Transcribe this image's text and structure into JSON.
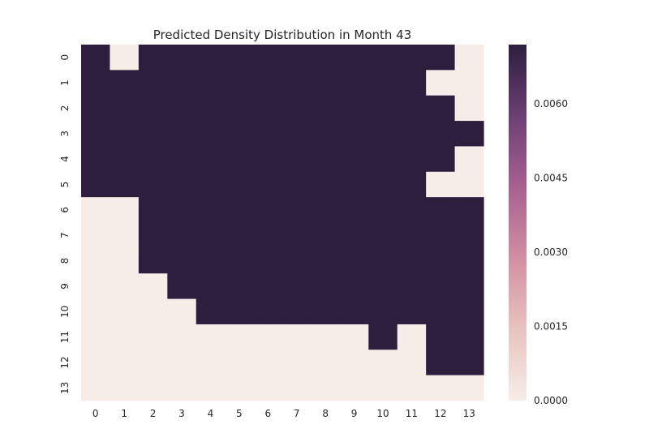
{
  "chart_data": {
    "type": "heatmap",
    "title": "Predicted Density Distribution in Month 43",
    "xlabel": "",
    "ylabel": "",
    "x_categories": [
      "0",
      "1",
      "2",
      "3",
      "4",
      "5",
      "6",
      "7",
      "8",
      "9",
      "10",
      "11",
      "12",
      "13"
    ],
    "y_categories": [
      "0",
      "1",
      "2",
      "3",
      "4",
      "5",
      "6",
      "7",
      "8",
      "9",
      "10",
      "11",
      "12",
      "13"
    ],
    "colorbar": {
      "min": 0.0,
      "max": 0.0072,
      "ticks": [
        0.0,
        0.0015,
        0.003,
        0.0045,
        0.006
      ],
      "tick_labels": [
        "0.0000",
        "0.0015",
        "0.0030",
        "0.0045",
        "0.0060"
      ],
      "colors": [
        "#f7ede8",
        "#e8c3bf",
        "#d28fa2",
        "#a8608f",
        "#6b3f74",
        "#2d1e3e"
      ]
    },
    "values": [
      [
        0.0072,
        0,
        0.0072,
        0.0072,
        0.0072,
        0.0072,
        0.0072,
        0.0072,
        0.0072,
        0.0072,
        0.0072,
        0.0072,
        0.0072,
        0
      ],
      [
        0.0072,
        0.0072,
        0.0072,
        0.0072,
        0.0072,
        0.0072,
        0.0072,
        0.0072,
        0.0072,
        0.0072,
        0.0072,
        0.0072,
        0,
        0
      ],
      [
        0.0072,
        0.0072,
        0.0072,
        0.0072,
        0.0072,
        0.0072,
        0.0072,
        0.0072,
        0.0072,
        0.0072,
        0.0072,
        0.0072,
        0.0072,
        0
      ],
      [
        0.0072,
        0.0072,
        0.0072,
        0.0072,
        0.0072,
        0.0072,
        0.0072,
        0.0072,
        0.0072,
        0.0072,
        0.0072,
        0.0072,
        0.0072,
        0.0072
      ],
      [
        0.0072,
        0.0072,
        0.0072,
        0.0072,
        0.0072,
        0.0072,
        0.0072,
        0.0072,
        0.0072,
        0.0072,
        0.0072,
        0.0072,
        0.0072,
        0
      ],
      [
        0.0072,
        0.0072,
        0.0072,
        0.0072,
        0.0072,
        0.0072,
        0.0072,
        0.0072,
        0.0072,
        0.0072,
        0.0072,
        0.0072,
        0,
        0
      ],
      [
        0,
        0,
        0.0072,
        0.0072,
        0.0072,
        0.0072,
        0.0072,
        0.0072,
        0.0072,
        0.0072,
        0.0072,
        0.0072,
        0.0072,
        0.0072
      ],
      [
        0,
        0,
        0.0072,
        0.0072,
        0.0072,
        0.0072,
        0.0072,
        0.0072,
        0.0072,
        0.0072,
        0.0072,
        0.0072,
        0.0072,
        0.0072
      ],
      [
        0,
        0,
        0.0072,
        0.0072,
        0.0072,
        0.0072,
        0.0072,
        0.0072,
        0.0072,
        0.0072,
        0.0072,
        0.0072,
        0.0072,
        0.0072
      ],
      [
        0,
        0,
        0,
        0.0072,
        0.0072,
        0.0072,
        0.0072,
        0.0072,
        0.0072,
        0.0072,
        0.0072,
        0.0072,
        0.0072,
        0.0072
      ],
      [
        0,
        0,
        0,
        0,
        0.0072,
        0.0072,
        0.0072,
        0.0072,
        0.0072,
        0.0072,
        0.0072,
        0.0072,
        0.0072,
        0.0072
      ],
      [
        0,
        0,
        0,
        0,
        0,
        0,
        0,
        0,
        0,
        0,
        0.0072,
        0,
        0.0072,
        0.0072
      ],
      [
        0,
        0,
        0,
        0,
        0,
        0,
        0,
        0,
        0,
        0,
        0,
        0,
        0.0072,
        0.0072
      ],
      [
        0,
        0,
        0,
        0,
        0,
        0,
        0,
        0,
        0,
        0,
        0,
        0,
        0,
        0
      ]
    ],
    "grid": false,
    "legend": "colorbar-right"
  }
}
